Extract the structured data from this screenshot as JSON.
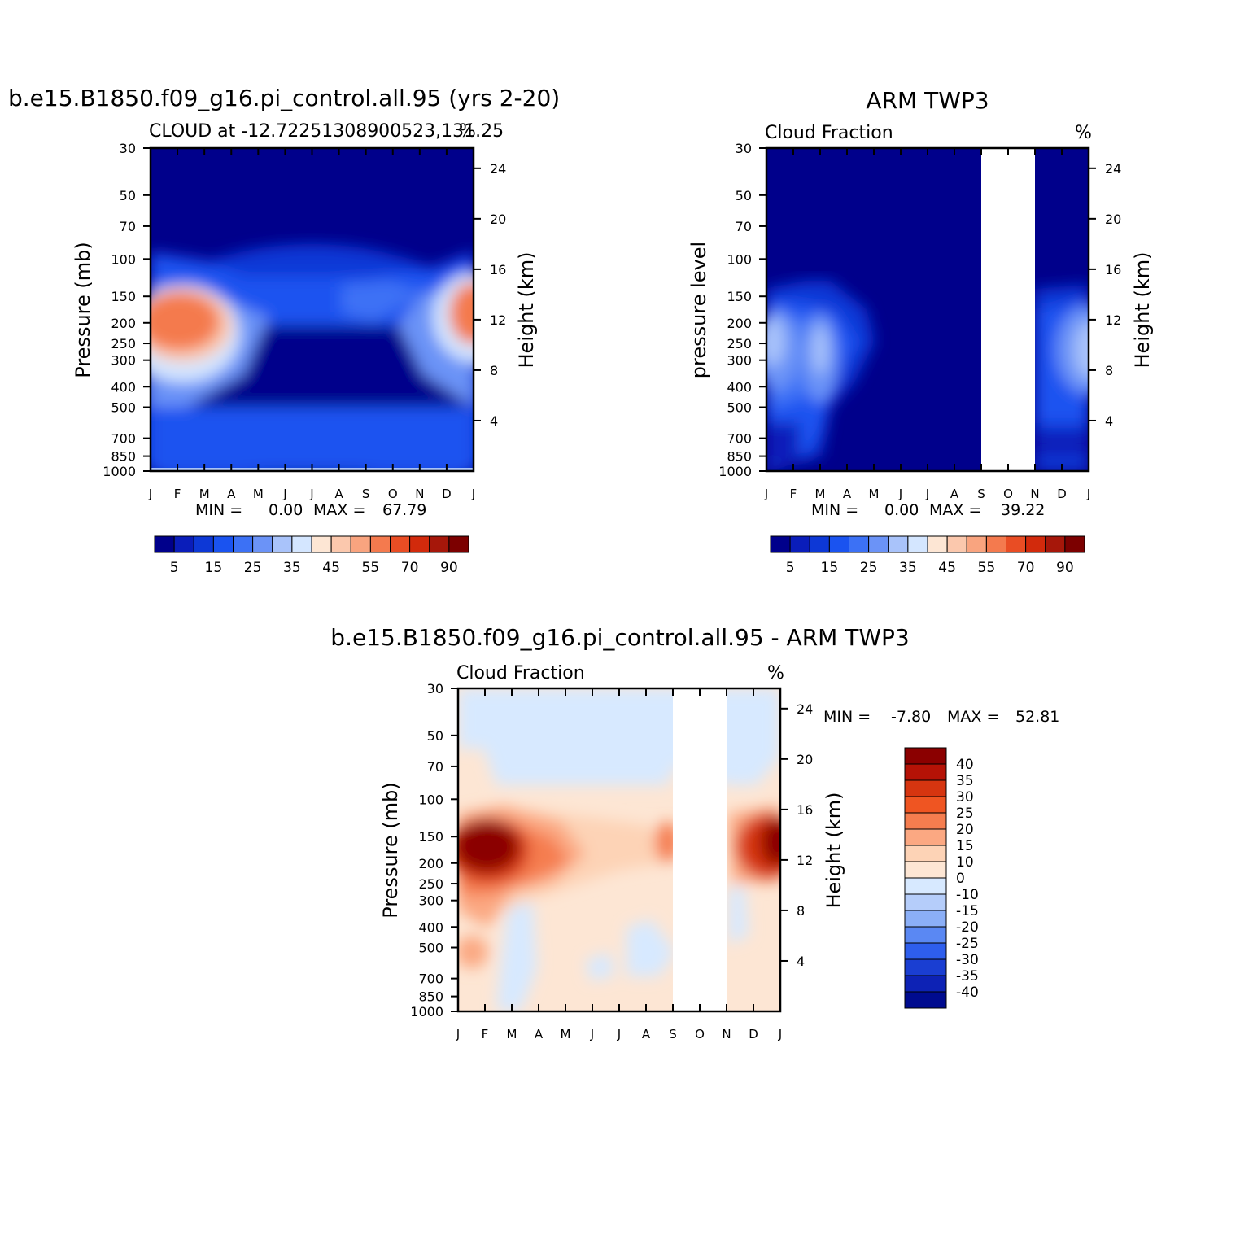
{
  "chart_data": [
    {
      "type": "heatmap",
      "title": "b.e15.B1850.f09_g16.pi_control.all.95 (yrs 2-20)",
      "subtitle_left": "CLOUD at -12.72251308900523,131.25",
      "subtitle_right": "%",
      "xlabel": "",
      "ylabel": "Pressure (mb)",
      "ylabel_right": "Height (km)",
      "x_ticklabels": [
        "J",
        "F",
        "M",
        "A",
        "M",
        "J",
        "J",
        "A",
        "S",
        "O",
        "N",
        "D",
        "J"
      ],
      "y_ticks": [
        30,
        50,
        70,
        100,
        150,
        200,
        250,
        300,
        400,
        500,
        700,
        850,
        1000
      ],
      "y_right_ticks": [
        24,
        20,
        16,
        12,
        8,
        4
      ],
      "min_label": "MIN =",
      "min_value": "0.00",
      "max_label": "MAX =",
      "max_value": "67.79",
      "colorbar_labels": [
        "5",
        "15",
        "25",
        "35",
        "45",
        "55",
        "70",
        "90"
      ]
    },
    {
      "type": "heatmap",
      "title": "ARM TWP3",
      "subtitle_left": "Cloud Fraction",
      "subtitle_right": "%",
      "xlabel": "",
      "ylabel": "pressure level",
      "ylabel_right": "Height (km)",
      "x_ticklabels": [
        "J",
        "F",
        "M",
        "A",
        "M",
        "J",
        "J",
        "A",
        "S",
        "O",
        "N",
        "D",
        "J"
      ],
      "y_ticks": [
        30,
        50,
        70,
        100,
        150,
        200,
        250,
        300,
        400,
        500,
        700,
        850,
        1000
      ],
      "y_right_ticks": [
        24,
        20,
        16,
        12,
        8,
        4
      ],
      "missing_months": [
        "S-N"
      ],
      "min_label": "MIN =",
      "min_value": "0.00",
      "max_label": "MAX =",
      "max_value": "39.22",
      "colorbar_labels": [
        "5",
        "15",
        "25",
        "35",
        "45",
        "55",
        "70",
        "90"
      ]
    },
    {
      "type": "heatmap",
      "title": "b.e15.B1850.f09_g16.pi_control.all.95 - ARM TWP3",
      "subtitle_left": "Cloud Fraction",
      "subtitle_right": "%",
      "xlabel": "",
      "ylabel": "Pressure (mb)",
      "ylabel_right": "Height (km)",
      "x_ticklabels": [
        "J",
        "F",
        "M",
        "A",
        "M",
        "J",
        "J",
        "A",
        "S",
        "O",
        "N",
        "D",
        "J"
      ],
      "y_ticks": [
        30,
        50,
        70,
        100,
        150,
        200,
        250,
        300,
        400,
        500,
        700,
        850,
        1000
      ],
      "y_right_ticks": [
        24,
        20,
        16,
        12,
        8,
        4
      ],
      "missing_months": [
        "S-N"
      ],
      "min_label": "MIN =",
      "min_value": "-7.80",
      "max_label": "MAX =",
      "max_value": "52.81",
      "colorbar_labels": [
        "40",
        "35",
        "30",
        "25",
        "20",
        "15",
        "10",
        "0",
        "-10",
        "-15",
        "-20",
        "-25",
        "-30",
        "-35",
        "-40"
      ]
    }
  ],
  "colors": {
    "seq_palette": [
      "#00008b",
      "#0a1dba",
      "#0d38d6",
      "#1a53f0",
      "#3c71f5",
      "#6b93f7",
      "#a9c3fa",
      "#d4e6ff",
      "#fde6d4",
      "#fbc8ad",
      "#f9a47f",
      "#f47a4e",
      "#e94d24",
      "#d22a0c",
      "#a6170a",
      "#7c0000"
    ],
    "diff_palette": [
      "#8b0000",
      "#b51206",
      "#d63510",
      "#ef5522",
      "#f57d4f",
      "#fba882",
      "#fdd3b6",
      "#fde6d4",
      "#d7e9ff",
      "#b5cdfa",
      "#8baff7",
      "#5a88f3",
      "#2e5eed",
      "#1a3ed2",
      "#0d22b5",
      "#000b8f"
    ]
  }
}
